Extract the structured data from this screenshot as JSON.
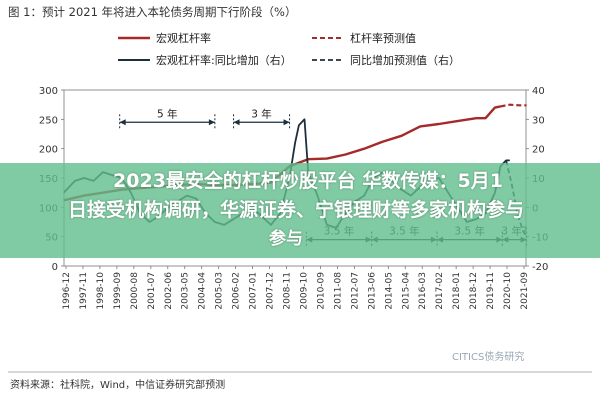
{
  "figure_title": "图 1：预计 2021 年将进入本轮债务周期下行阶段（%）",
  "legend": [
    {
      "label": "宏观杠杆率",
      "style": "solid",
      "color": "#a52a2a"
    },
    {
      "label": "杠杆率预测值",
      "style": "dashed",
      "color": "#a52a2a"
    },
    {
      "label": "宏观杠杆率:同比增加（右）",
      "style": "solid",
      "color": "#1e2f3c"
    },
    {
      "label": "同比增加预测值（右）",
      "style": "dashed",
      "color": "#1e2f3c"
    }
  ],
  "annotations": {
    "span1": "5 年",
    "span2": "3 年",
    "span3": "3.5 年",
    "span4": "3.5 年",
    "span5": "3.5 年",
    "span6": "3 年?"
  },
  "source": "资料来源：社科院，Wind，中信证券研究部预测",
  "watermark": "CITICS债务研究",
  "overlay": {
    "line1": "2023最安全的杠杆炒股平台 华数传媒：5月1",
    "line2": "日接受机构调研，华源证券、宁银理财等多家机构参与",
    "line3": "参与"
  },
  "colors": {
    "leverage": "#a52a2a",
    "yoy": "#1e2f3c",
    "arrow": "#1e2f3c",
    "overlay": "#60be8c"
  },
  "chart_data": {
    "type": "line",
    "title": "预计 2021 年将进入本轮债务周期下行阶段（%）",
    "x_categories": [
      "1996-12",
      "1997-11",
      "1998-10",
      "1999-09",
      "2000-08",
      "2001-07",
      "2002-06",
      "2003-05",
      "2004-04",
      "2005-03",
      "2006-02",
      "2007-01",
      "2007-12",
      "2008-11",
      "2009-10",
      "2010-09",
      "2011-08",
      "2012-07",
      "2013-06",
      "2014-05",
      "2015-04",
      "2016-03",
      "2017-02",
      "2018-01",
      "2018-12",
      "2019-11",
      "2020-10",
      "2021-09"
    ],
    "x_range": [
      1996.917,
      2021.667
    ],
    "y_left": {
      "ylim": [
        0,
        300
      ],
      "ticks": [
        0,
        50,
        100,
        150,
        200,
        250,
        300
      ]
    },
    "y_right": {
      "ylim": [
        -20,
        40
      ],
      "ticks": [
        -20,
        -10,
        0,
        10,
        20,
        30,
        40
      ]
    },
    "series": [
      {
        "name": "宏观杠杆率",
        "axis": "left",
        "style": "solid",
        "x": [
          1996.9,
          1998.0,
          1999.0,
          2000.0,
          2001.0,
          2002.0,
          2003.0,
          2004.0,
          2005.0,
          2006.0,
          2007.0,
          2008.0,
          2009.0,
          2010.0,
          2011.0,
          2012.0,
          2013.0,
          2014.0,
          2015.0,
          2016.0,
          2017.0,
          2018.0,
          2019.0,
          2019.5,
          2020.0,
          2020.3
        ],
        "y": [
          112,
          120,
          125,
          130,
          133,
          135,
          138,
          140,
          138,
          138,
          140,
          142,
          170,
          182,
          183,
          190,
          200,
          212,
          222,
          238,
          242,
          247,
          252,
          252,
          270,
          272
        ]
      },
      {
        "name": "杠杆率预测值",
        "axis": "left",
        "style": "dashed",
        "x": [
          2020.3,
          2020.8,
          2021.3,
          2021.7
        ],
        "y": [
          272,
          275,
          274,
          274
        ]
      },
      {
        "name": "宏观杠杆率:同比增加",
        "axis": "right",
        "style": "solid",
        "x": [
          1996.9,
          1997.5,
          1998.0,
          1998.5,
          1999.0,
          1999.5,
          2000.0,
          2000.5,
          2001.0,
          2001.5,
          2002.0,
          2002.5,
          2003.0,
          2003.5,
          2004.0,
          2004.5,
          2005.0,
          2005.5,
          2006.0,
          2006.5,
          2007.0,
          2007.5,
          2008.0,
          2008.5,
          2009.0,
          2009.3,
          2009.5,
          2009.8,
          2010.0,
          2010.5,
          2011.0,
          2011.5,
          2012.0,
          2012.5,
          2013.0,
          2013.5,
          2014.0,
          2014.5,
          2015.0,
          2015.5,
          2016.0,
          2016.5,
          2017.0,
          2017.5,
          2018.0,
          2018.5,
          2019.0,
          2019.5,
          2020.0,
          2020.3,
          2020.6,
          2020.8
        ],
        "y": [
          5,
          9,
          10,
          9,
          12,
          11,
          10,
          5,
          -2,
          -5,
          -3,
          0,
          2,
          4,
          3,
          -2,
          -5,
          -6,
          -4,
          -2,
          0,
          -3,
          -6,
          -2,
          10,
          22,
          28,
          30,
          12,
          4,
          -6,
          -7,
          -2,
          2,
          4,
          10,
          12,
          9,
          6,
          4,
          7,
          9,
          10,
          5,
          0,
          -5,
          -4,
          -2,
          5,
          14,
          16,
          16
        ]
      },
      {
        "name": "同比增加预测值",
        "axis": "right",
        "style": "dashed",
        "x": [
          2020.6,
          2020.9,
          2021.2,
          2021.5,
          2021.7
        ],
        "y": [
          16,
          8,
          -2,
          -8,
          -10
        ]
      }
    ],
    "spans": [
      {
        "label": "5 年",
        "from": 1999.9,
        "to": 2005.0,
        "y_right": 29
      },
      {
        "label": "3 年",
        "from": 2006.0,
        "to": 2009.0,
        "y_right": 29
      },
      {
        "label": "3.5 年",
        "from": 2009.9,
        "to": 2013.4,
        "y_right": -11
      },
      {
        "label": "3.5 年",
        "from": 2013.4,
        "to": 2016.9,
        "y_right": -11
      },
      {
        "label": "3.5 年",
        "from": 2016.9,
        "to": 2020.4,
        "y_right": -11
      },
      {
        "label": "3 年?",
        "from": 2020.4,
        "to": 2021.7,
        "y_right": -11
      }
    ]
  }
}
